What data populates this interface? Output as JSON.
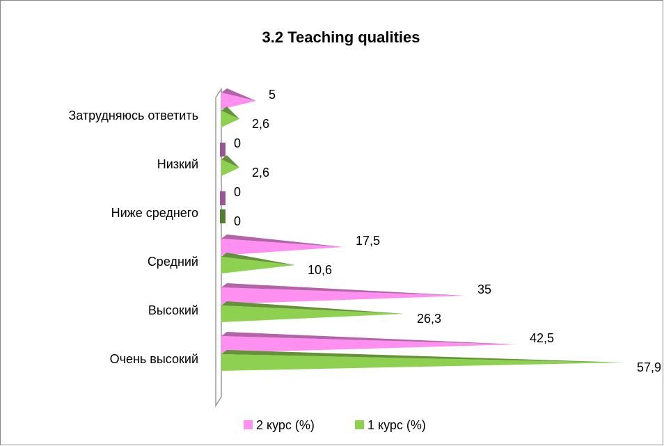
{
  "chart_data": {
    "type": "bar3d",
    "title": "3.2 Teaching qualities",
    "categories": [
      "Затрудняюсь ответить",
      "Низкий",
      "Ниже среднего",
      "Средний",
      "Высокий",
      "Очень высокий"
    ],
    "series": [
      {
        "name": "2 курс (%)",
        "color": "#ff8ff0",
        "values": [
          5,
          0,
          0,
          17.5,
          35,
          42.5
        ],
        "value_labels": [
          "5",
          "0",
          "0",
          "17,5",
          "35",
          "42,5"
        ]
      },
      {
        "name": "1 курс (%)",
        "color": "#8ed150",
        "values": [
          2.6,
          2.6,
          0,
          10.6,
          26.3,
          57.9
        ],
        "value_labels": [
          "2,6",
          "2,6",
          "0",
          "10,6",
          "26,3",
          "57,9"
        ]
      }
    ],
    "xlim": [
      0,
      60
    ],
    "legend": "bottom"
  }
}
